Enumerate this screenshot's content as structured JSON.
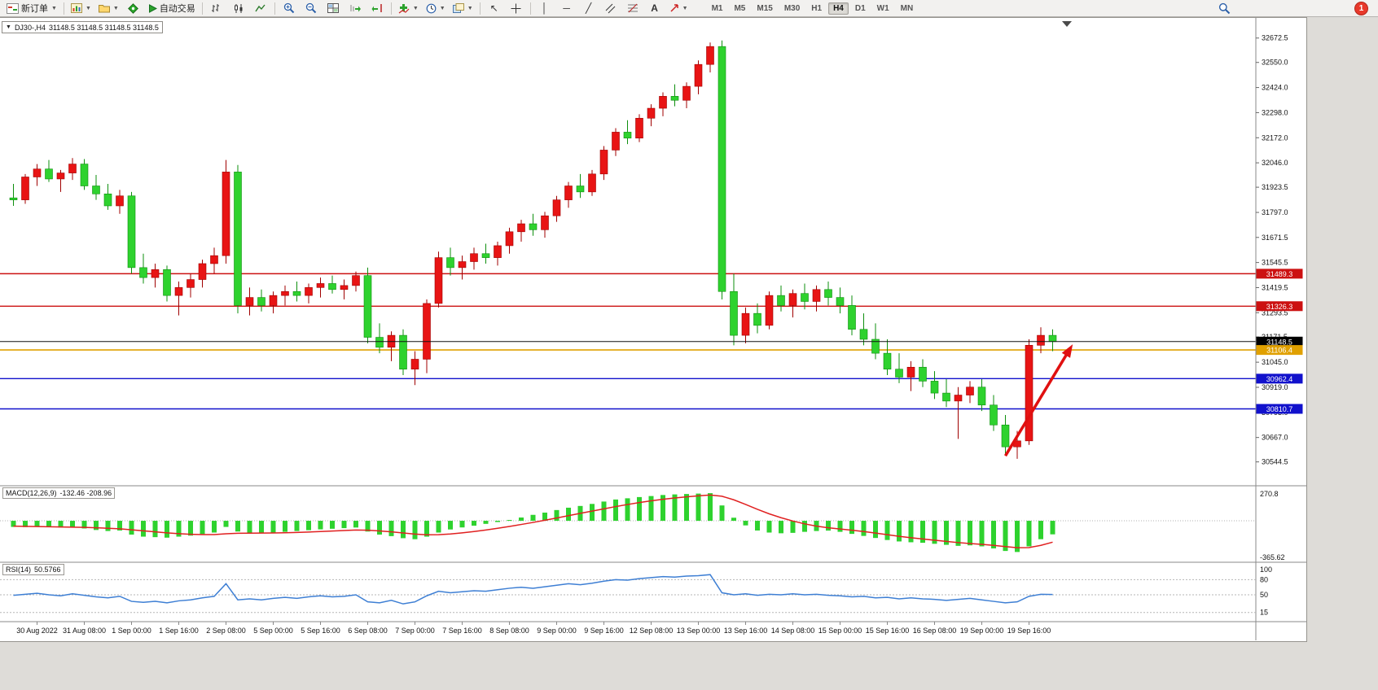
{
  "toolbar": {
    "new_order_label": "新订单",
    "autotrading_label": "自动交易",
    "timeframes": [
      "M1",
      "M5",
      "M15",
      "M30",
      "H1",
      "H4",
      "D1",
      "W1",
      "MN"
    ],
    "active_timeframe": "H4",
    "alert_badge_count": "1"
  },
  "chart_header": {
    "symbol_period": "DJ30-,H4",
    "ohlc": "31148.5 31148.5 31148.5 31148.5"
  },
  "indicators": {
    "macd_label": "MACD(12,26,9)",
    "macd_values": "-132.46 -208.96",
    "rsi_label": "RSI(14)",
    "rsi_value": "50.5766"
  },
  "chart_data": {
    "type": "candlestick",
    "symbol": "DJ30-",
    "period": "H4",
    "colors": {
      "up": "#e81414",
      "up_stroke": "#a00000",
      "down": "#2ed22e",
      "down_stroke": "#0e8f0e"
    },
    "price_axis": {
      "range": [
        30490,
        32745
      ],
      "ticks": [
        "32672.5",
        "32550.0",
        "32424.0",
        "32298.0",
        "32172.0",
        "32046.0",
        "31923.5",
        "31797.0",
        "31671.5",
        "31545.5",
        "31419.5",
        "31293.5",
        "31171.5",
        "31045.0",
        "30919.0",
        "30793.0",
        "30667.0",
        "30544.5"
      ]
    },
    "hlines": [
      {
        "price": 31489.3,
        "label": "31489.3",
        "color": "#cc1111",
        "width": 1.4
      },
      {
        "price": 31326.3,
        "label": "31326.3",
        "color": "#cc1111",
        "width": 1.4
      },
      {
        "price": 31148.5,
        "label": "31148.5",
        "color": "#111111",
        "width": 1
      },
      {
        "price": 31106.4,
        "label": "31106.4",
        "color": "#e0a000",
        "width": 1.6
      },
      {
        "price": 30962.4,
        "label": "30962.4",
        "color": "#1111cc",
        "width": 1.4
      },
      {
        "price": 30810.7,
        "label": "30810.7",
        "color": "#1111cc",
        "width": 1.4
      }
    ],
    "time_labels": [
      [
        2,
        "30 Aug 2022"
      ],
      [
        6,
        "31 Aug 08:00"
      ],
      [
        10,
        "1 Sep 00:00"
      ],
      [
        14,
        "1 Sep 16:00"
      ],
      [
        18,
        "2 Sep 08:00"
      ],
      [
        22,
        "5 Sep 00:00"
      ],
      [
        26,
        "5 Sep 16:00"
      ],
      [
        30,
        "6 Sep 08:00"
      ],
      [
        34,
        "7 Sep 00:00"
      ],
      [
        38,
        "7 Sep 16:00"
      ],
      [
        42,
        "8 Sep 08:00"
      ],
      [
        46,
        "9 Sep 00:00"
      ],
      [
        50,
        "9 Sep 16:00"
      ],
      [
        54,
        "12 Sep 08:00"
      ],
      [
        58,
        "13 Sep 00:00"
      ],
      [
        62,
        "13 Sep 16:00"
      ],
      [
        66,
        "14 Sep 08:00"
      ],
      [
        70,
        "15 Sep 00:00"
      ],
      [
        74,
        "15 Sep 16:00"
      ],
      [
        78,
        "16 Sep 08:00"
      ],
      [
        82,
        "19 Sep 00:00"
      ],
      [
        86,
        "19 Sep 16:00"
      ]
    ],
    "candles": [
      [
        31870,
        31940,
        31830,
        31860
      ],
      [
        31860,
        31990,
        31840,
        31975
      ],
      [
        31975,
        32040,
        31930,
        32015
      ],
      [
        32015,
        32060,
        31950,
        31965
      ],
      [
        31965,
        32010,
        31900,
        31995
      ],
      [
        31995,
        32070,
        31960,
        32040
      ],
      [
        32040,
        32065,
        31910,
        31930
      ],
      [
        31930,
        31985,
        31860,
        31890
      ],
      [
        31890,
        31940,
        31810,
        31830
      ],
      [
        31830,
        31910,
        31790,
        31880
      ],
      [
        31880,
        31900,
        31490,
        31520
      ],
      [
        31520,
        31590,
        31440,
        31470
      ],
      [
        31470,
        31540,
        31420,
        31510
      ],
      [
        31510,
        31530,
        31350,
        31380
      ],
      [
        31380,
        31450,
        31280,
        31420
      ],
      [
        31420,
        31490,
        31370,
        31460
      ],
      [
        31460,
        31560,
        31420,
        31540
      ],
      [
        31540,
        31620,
        31490,
        31580
      ],
      [
        31580,
        32060,
        31540,
        32000
      ],
      [
        32000,
        32035,
        31290,
        31330
      ],
      [
        31330,
        31420,
        31280,
        31370
      ],
      [
        31370,
        31410,
        31300,
        31330
      ],
      [
        31330,
        31400,
        31290,
        31380
      ],
      [
        31380,
        31430,
        31330,
        31400
      ],
      [
        31400,
        31450,
        31350,
        31380
      ],
      [
        31380,
        31440,
        31340,
        31420
      ],
      [
        31420,
        31470,
        31370,
        31440
      ],
      [
        31440,
        31480,
        31390,
        31410
      ],
      [
        31410,
        31460,
        31360,
        31430
      ],
      [
        31430,
        31500,
        31400,
        31480
      ],
      [
        31480,
        31520,
        31140,
        31170
      ],
      [
        31170,
        31240,
        31090,
        31120
      ],
      [
        31120,
        31200,
        31050,
        31180
      ],
      [
        31180,
        31210,
        30980,
        31010
      ],
      [
        31010,
        31100,
        30930,
        31060
      ],
      [
        31060,
        31360,
        30990,
        31340
      ],
      [
        31340,
        31600,
        31320,
        31570
      ],
      [
        31570,
        31620,
        31480,
        31520
      ],
      [
        31520,
        31580,
        31460,
        31550
      ],
      [
        31550,
        31620,
        31510,
        31590
      ],
      [
        31590,
        31640,
        31540,
        31570
      ],
      [
        31570,
        31650,
        31530,
        31630
      ],
      [
        31630,
        31720,
        31590,
        31700
      ],
      [
        31700,
        31760,
        31650,
        31740
      ],
      [
        31740,
        31790,
        31680,
        31710
      ],
      [
        31710,
        31800,
        31670,
        31780
      ],
      [
        31780,
        31880,
        31750,
        31860
      ],
      [
        31860,
        31950,
        31820,
        31930
      ],
      [
        31930,
        31990,
        31870,
        31900
      ],
      [
        31900,
        32010,
        31880,
        31990
      ],
      [
        31990,
        32130,
        31960,
        32110
      ],
      [
        32110,
        32220,
        32080,
        32200
      ],
      [
        32200,
        32260,
        32140,
        32170
      ],
      [
        32170,
        32290,
        32150,
        32270
      ],
      [
        32270,
        32340,
        32230,
        32320
      ],
      [
        32320,
        32400,
        32280,
        32380
      ],
      [
        32380,
        32440,
        32330,
        32360
      ],
      [
        32360,
        32450,
        32320,
        32430
      ],
      [
        32430,
        32560,
        32390,
        32540
      ],
      [
        32540,
        32650,
        32500,
        32630
      ],
      [
        32630,
        32660,
        31360,
        31400
      ],
      [
        31400,
        31490,
        31130,
        31180
      ],
      [
        31180,
        31320,
        31140,
        31290
      ],
      [
        31290,
        31340,
        31190,
        31230
      ],
      [
        31230,
        31400,
        31210,
        31380
      ],
      [
        31380,
        31430,
        31300,
        31330
      ],
      [
        31330,
        31410,
        31270,
        31390
      ],
      [
        31390,
        31440,
        31310,
        31350
      ],
      [
        31350,
        31430,
        31300,
        31410
      ],
      [
        31410,
        31450,
        31330,
        31370
      ],
      [
        31370,
        31420,
        31290,
        31330
      ],
      [
        31330,
        31380,
        31180,
        31210
      ],
      [
        31210,
        31290,
        31130,
        31160
      ],
      [
        31160,
        31240,
        31060,
        31090
      ],
      [
        31090,
        31160,
        30980,
        31010
      ],
      [
        31010,
        31090,
        30940,
        30970
      ],
      [
        30970,
        31050,
        30900,
        31020
      ],
      [
        31020,
        31060,
        30920,
        30950
      ],
      [
        30950,
        31000,
        30860,
        30890
      ],
      [
        30890,
        30960,
        30820,
        30850
      ],
      [
        30850,
        30920,
        30660,
        30880
      ],
      [
        30880,
        30950,
        30840,
        30920
      ],
      [
        30920,
        30960,
        30800,
        30830
      ],
      [
        30830,
        30880,
        30700,
        30730
      ],
      [
        30730,
        30780,
        30580,
        30620
      ],
      [
        30620,
        30700,
        30560,
        30650
      ],
      [
        30650,
        31160,
        30630,
        31130
      ],
      [
        31130,
        31220,
        31090,
        31180
      ],
      [
        31180,
        31210,
        31100,
        31148.5
      ]
    ],
    "macd": {
      "title": "MACD(12,26,9)",
      "current_macd": -132.46,
      "current_signal": -208.96,
      "scale": {
        "max": 270.8,
        "min": -365.62,
        "max_label": "270.8",
        "min_label": "-365.62"
      },
      "hist_color": "#2ed22e",
      "signal_color": "#e02020",
      "histogram": [
        -60,
        -62,
        -55,
        -58,
        -66,
        -62,
        -75,
        -90,
        -100,
        -95,
        -135,
        -155,
        -160,
        -165,
        -155,
        -145,
        -130,
        -115,
        -60,
        -105,
        -115,
        -120,
        -115,
        -108,
        -100,
        -92,
        -84,
        -78,
        -72,
        -66,
        -105,
        -135,
        -150,
        -170,
        -180,
        -155,
        -115,
        -85,
        -65,
        -48,
        -30,
        -12,
        8,
        32,
        58,
        80,
        105,
        128,
        145,
        165,
        188,
        208,
        220,
        232,
        242,
        252,
        258,
        262,
        266,
        270,
        150,
        30,
        -45,
        -95,
        -115,
        -122,
        -118,
        -108,
        -100,
        -96,
        -108,
        -128,
        -148,
        -168,
        -188,
        -202,
        -210,
        -215,
        -225,
        -235,
        -245,
        -240,
        -250,
        -270,
        -295,
        -305,
        -250,
        -180,
        -132.46
      ],
      "signal": [
        -52,
        -54,
        -56,
        -58,
        -60,
        -62,
        -64,
        -68,
        -73,
        -78,
        -88,
        -98,
        -108,
        -118,
        -126,
        -132,
        -135,
        -135,
        -127,
        -122,
        -121,
        -120,
        -119,
        -117,
        -114,
        -110,
        -105,
        -100,
        -95,
        -90,
        -92,
        -99,
        -108,
        -119,
        -130,
        -137,
        -136,
        -129,
        -118,
        -105,
        -90,
        -73,
        -55,
        -36,
        -16,
        5,
        27,
        50,
        73,
        95,
        117,
        139,
        159,
        178,
        195,
        210,
        223,
        234,
        244,
        252,
        240,
        205,
        160,
        112,
        68,
        30,
        -2,
        -30,
        -52,
        -68,
        -80,
        -92,
        -105,
        -120,
        -136,
        -152,
        -166,
        -178,
        -190,
        -202,
        -213,
        -222,
        -230,
        -240,
        -252,
        -263,
        -262,
        -240,
        -208.96
      ]
    },
    "rsi": {
      "title": "RSI(14)",
      "current": 50.5766,
      "color": "#3e7fd4",
      "range": [
        0,
        100
      ],
      "levels": [
        {
          "v": 100,
          "label": "100"
        },
        {
          "v": 80,
          "label": "80"
        },
        {
          "v": 50,
          "label": "50"
        },
        {
          "v": 15,
          "label": "15"
        }
      ],
      "values": [
        49,
        51,
        53,
        50,
        48,
        52,
        49,
        46,
        44,
        47,
        37,
        35,
        37,
        34,
        38,
        40,
        44,
        47,
        72,
        40,
        42,
        40,
        43,
        45,
        43,
        46,
        48,
        46,
        47,
        50,
        36,
        34,
        39,
        32,
        36,
        48,
        57,
        54,
        56,
        58,
        57,
        60,
        63,
        65,
        63,
        66,
        69,
        72,
        70,
        73,
        77,
        80,
        79,
        82,
        84,
        86,
        85,
        87,
        88,
        90,
        54,
        50,
        52,
        49,
        51,
        50,
        52,
        50,
        51,
        49,
        48,
        46,
        47,
        44,
        45,
        42,
        44,
        42,
        41,
        39,
        41,
        43,
        40,
        37,
        34,
        36,
        47,
        51,
        50.58
      ]
    },
    "arrow": {
      "from": {
        "index": 84,
        "price": 30575
      },
      "to": {
        "index": 89.7,
        "price": 31135
      },
      "color": "#e01010"
    }
  }
}
